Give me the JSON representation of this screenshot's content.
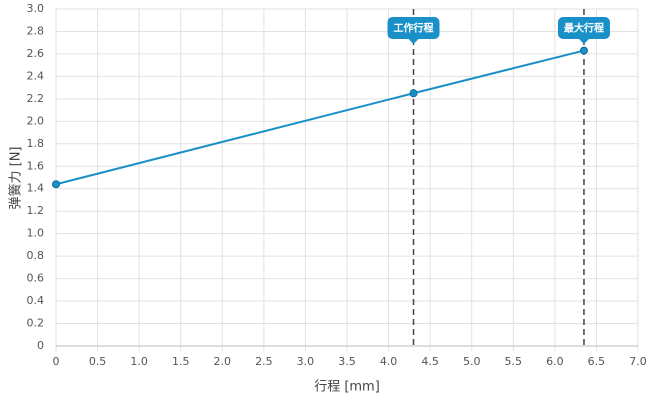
{
  "chart_data": {
    "type": "line",
    "x_label": "行程 [mm]",
    "y_label": "弹簧力 [N]",
    "x": [
      0,
      4.3,
      6.35
    ],
    "series": [
      {
        "name": "弹簧力",
        "color": "#1a90c8",
        "values": [
          1.44,
          2.25,
          2.63
        ]
      }
    ],
    "xlim": [
      0,
      7
    ],
    "ylim": [
      0,
      3
    ],
    "xticks": [
      0,
      0.5,
      {
        "value": 1,
        "label": "1.0"
      },
      1.5,
      {
        "value": 2,
        "label": "2.0"
      },
      2.5,
      {
        "value": 3,
        "label": "3.0"
      },
      3.5,
      {
        "value": 4,
        "label": "4.0"
      },
      4.5,
      {
        "value": 5,
        "label": "5.0"
      },
      5.5,
      {
        "value": 6,
        "label": "6.0"
      },
      6.5,
      {
        "value": 7,
        "label": "7.0"
      }
    ],
    "yticks": [
      0,
      0.2,
      0.4,
      0.6,
      0.8,
      {
        "value": 1,
        "label": "1.0"
      },
      1.2,
      1.4,
      1.6,
      1.8,
      {
        "value": 2,
        "label": "2.0"
      },
      2.2,
      2.4,
      2.6,
      2.8,
      {
        "value": 3,
        "label": "3.0"
      }
    ],
    "grid": true,
    "annotations": [
      {
        "x": 4.3,
        "label": "工作行程"
      },
      {
        "x": 6.35,
        "label": "最大行程"
      }
    ]
  }
}
